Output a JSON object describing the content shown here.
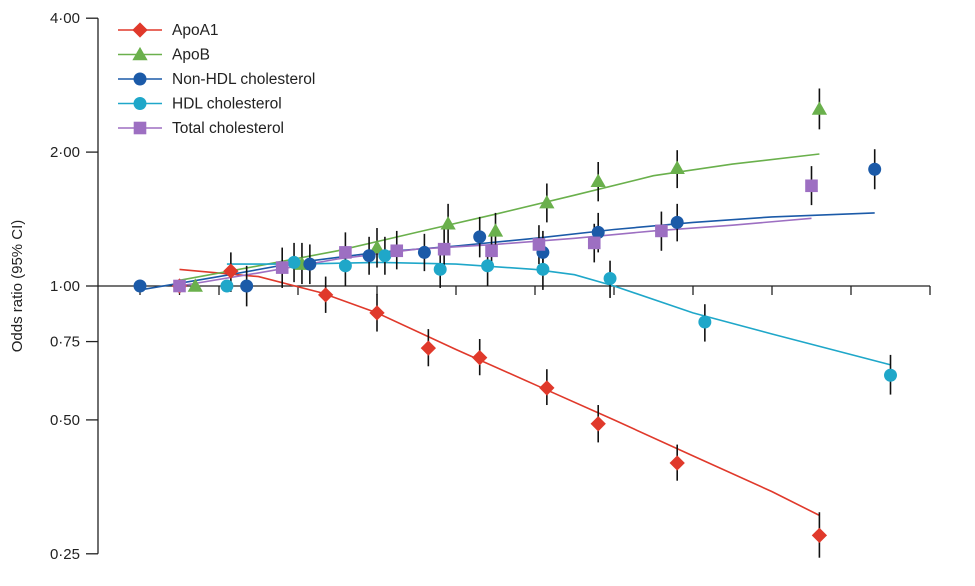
{
  "chart_data": {
    "type": "scatter",
    "title": "",
    "xlabel": "",
    "ylabel": "Odds ratio (95% CI)",
    "y_scale": "log",
    "ylim": [
      0.24,
      4.1
    ],
    "xlim": [
      0,
      100
    ],
    "y_ticks": [
      {
        "value": 4.0,
        "label": "4·00"
      },
      {
        "value": 2.0,
        "label": "2·00"
      },
      {
        "value": 1.0,
        "label": "1·00"
      },
      {
        "value": 0.75,
        "label": "0·75"
      },
      {
        "value": 0.5,
        "label": "0·50"
      },
      {
        "value": 0.25,
        "label": "0·25"
      }
    ],
    "x_ticks": [
      0,
      5,
      10,
      20,
      30,
      40,
      50,
      60,
      70,
      80,
      90,
      100
    ],
    "legend_position": "top-left",
    "series": [
      {
        "name": "ApoA1",
        "color": "#e0392b",
        "marker": "diamond",
        "points": [
          {
            "x": 5,
            "y": 1.0
          },
          {
            "x": 11.5,
            "y": 1.08,
            "lo": 0.97,
            "hi": 1.19
          },
          {
            "x": 23.5,
            "y": 0.955,
            "lo": 0.87,
            "hi": 1.05
          },
          {
            "x": 30,
            "y": 0.87,
            "lo": 0.79,
            "hi": 0.96
          },
          {
            "x": 36.5,
            "y": 0.725,
            "lo": 0.66,
            "hi": 0.8
          },
          {
            "x": 43,
            "y": 0.69,
            "lo": 0.63,
            "hi": 0.76
          },
          {
            "x": 51.5,
            "y": 0.59,
            "lo": 0.54,
            "hi": 0.65
          },
          {
            "x": 58,
            "y": 0.49,
            "lo": 0.445,
            "hi": 0.54
          },
          {
            "x": 68,
            "y": 0.4,
            "lo": 0.365,
            "hi": 0.44
          },
          {
            "x": 86,
            "y": 0.275,
            "lo": 0.245,
            "hi": 0.31
          }
        ],
        "fit": [
          {
            "x": 5,
            "y": 1.09
          },
          {
            "x": 15,
            "y": 1.05
          },
          {
            "x": 23,
            "y": 0.965
          },
          {
            "x": 30,
            "y": 0.87
          },
          {
            "x": 40,
            "y": 0.72
          },
          {
            "x": 50,
            "y": 0.6
          },
          {
            "x": 60,
            "y": 0.5
          },
          {
            "x": 70,
            "y": 0.415
          },
          {
            "x": 80,
            "y": 0.345
          },
          {
            "x": 86,
            "y": 0.305
          }
        ]
      },
      {
        "name": "ApoB",
        "color": "#6ab04c",
        "marker": "triangle",
        "points": [
          {
            "x": 7,
            "y": 1.0
          },
          {
            "x": 20.5,
            "y": 1.12,
            "lo": 1.01,
            "hi": 1.25
          },
          {
            "x": 30,
            "y": 1.22,
            "lo": 1.1,
            "hi": 1.35
          },
          {
            "x": 39,
            "y": 1.38,
            "lo": 1.24,
            "hi": 1.53
          },
          {
            "x": 45,
            "y": 1.33,
            "lo": 1.2,
            "hi": 1.46
          },
          {
            "x": 51.5,
            "y": 1.54,
            "lo": 1.39,
            "hi": 1.7
          },
          {
            "x": 58,
            "y": 1.72,
            "lo": 1.55,
            "hi": 1.9
          },
          {
            "x": 68,
            "y": 1.84,
            "lo": 1.66,
            "hi": 2.02
          },
          {
            "x": 86,
            "y": 2.5,
            "lo": 2.25,
            "hi": 2.78
          }
        ],
        "fit": [
          {
            "x": 5,
            "y": 1.03
          },
          {
            "x": 15,
            "y": 1.11
          },
          {
            "x": 25,
            "y": 1.2
          },
          {
            "x": 35,
            "y": 1.32
          },
          {
            "x": 45,
            "y": 1.45
          },
          {
            "x": 55,
            "y": 1.6
          },
          {
            "x": 65,
            "y": 1.77
          },
          {
            "x": 75,
            "y": 1.88
          },
          {
            "x": 86,
            "y": 1.98
          }
        ]
      },
      {
        "name": "Non-HDL cholesterol",
        "color": "#1b5aa8",
        "marker": "circle",
        "points": [
          {
            "x": 0,
            "y": 1.0
          },
          {
            "x": 13.5,
            "y": 1.0,
            "lo": 0.9,
            "hi": 1.11
          },
          {
            "x": 21.5,
            "y": 1.12,
            "lo": 1.01,
            "hi": 1.24
          },
          {
            "x": 29,
            "y": 1.17,
            "lo": 1.06,
            "hi": 1.29
          },
          {
            "x": 36,
            "y": 1.19,
            "lo": 1.08,
            "hi": 1.31
          },
          {
            "x": 43,
            "y": 1.29,
            "lo": 1.16,
            "hi": 1.43
          },
          {
            "x": 51,
            "y": 1.19,
            "lo": 1.07,
            "hi": 1.33
          },
          {
            "x": 58,
            "y": 1.32,
            "lo": 1.19,
            "hi": 1.46
          },
          {
            "x": 68,
            "y": 1.39,
            "lo": 1.26,
            "hi": 1.53
          },
          {
            "x": 93,
            "y": 1.83,
            "lo": 1.65,
            "hi": 2.03
          }
        ],
        "fit": [
          {
            "x": 0,
            "y": 0.98
          },
          {
            "x": 10,
            "y": 1.05
          },
          {
            "x": 20,
            "y": 1.13
          },
          {
            "x": 30,
            "y": 1.19
          },
          {
            "x": 40,
            "y": 1.23
          },
          {
            "x": 50,
            "y": 1.28
          },
          {
            "x": 60,
            "y": 1.34
          },
          {
            "x": 70,
            "y": 1.39
          },
          {
            "x": 80,
            "y": 1.43
          },
          {
            "x": 93,
            "y": 1.46
          }
        ]
      },
      {
        "name": "HDL cholesterol",
        "color": "#1fa7c9",
        "marker": "circle",
        "points": [
          {
            "x": 11,
            "y": 1.0
          },
          {
            "x": 19.5,
            "y": 1.13,
            "lo": 1.02,
            "hi": 1.25
          },
          {
            "x": 26,
            "y": 1.11,
            "lo": 1.0,
            "hi": 1.23
          },
          {
            "x": 31,
            "y": 1.17,
            "lo": 1.06,
            "hi": 1.29
          },
          {
            "x": 38,
            "y": 1.09,
            "lo": 0.99,
            "hi": 1.21
          },
          {
            "x": 44,
            "y": 1.11,
            "lo": 1.0,
            "hi": 1.23
          },
          {
            "x": 51,
            "y": 1.09,
            "lo": 0.98,
            "hi": 1.21
          },
          {
            "x": 59.5,
            "y": 1.04,
            "lo": 0.94,
            "hi": 1.14
          },
          {
            "x": 71.5,
            "y": 0.83,
            "lo": 0.75,
            "hi": 0.91
          },
          {
            "x": 95,
            "y": 0.63,
            "lo": 0.57,
            "hi": 0.7
          }
        ],
        "fit": [
          {
            "x": 11,
            "y": 1.12
          },
          {
            "x": 20,
            "y": 1.12
          },
          {
            "x": 30,
            "y": 1.13
          },
          {
            "x": 40,
            "y": 1.12
          },
          {
            "x": 50,
            "y": 1.09
          },
          {
            "x": 55,
            "y": 1.06
          },
          {
            "x": 60,
            "y": 1.0
          },
          {
            "x": 70,
            "y": 0.87
          },
          {
            "x": 80,
            "y": 0.78
          },
          {
            "x": 95,
            "y": 0.665
          }
        ]
      },
      {
        "name": "Total cholesterol",
        "color": "#9d6fc2",
        "marker": "square",
        "points": [
          {
            "x": 5,
            "y": 1.0
          },
          {
            "x": 18,
            "y": 1.1,
            "lo": 0.99,
            "hi": 1.22
          },
          {
            "x": 26,
            "y": 1.19,
            "lo": 1.08,
            "hi": 1.32
          },
          {
            "x": 32.5,
            "y": 1.2,
            "lo": 1.09,
            "hi": 1.33
          },
          {
            "x": 38.5,
            "y": 1.21,
            "lo": 1.1,
            "hi": 1.34
          },
          {
            "x": 44.5,
            "y": 1.2,
            "lo": 1.09,
            "hi": 1.32
          },
          {
            "x": 50.5,
            "y": 1.24,
            "lo": 1.12,
            "hi": 1.37
          },
          {
            "x": 57.5,
            "y": 1.25,
            "lo": 1.13,
            "hi": 1.38
          },
          {
            "x": 66,
            "y": 1.33,
            "lo": 1.2,
            "hi": 1.47
          },
          {
            "x": 85,
            "y": 1.68,
            "lo": 1.52,
            "hi": 1.86
          }
        ],
        "fit": [
          {
            "x": 5,
            "y": 1.0
          },
          {
            "x": 15,
            "y": 1.07
          },
          {
            "x": 25,
            "y": 1.15
          },
          {
            "x": 35,
            "y": 1.21
          },
          {
            "x": 45,
            "y": 1.24
          },
          {
            "x": 55,
            "y": 1.28
          },
          {
            "x": 65,
            "y": 1.33
          },
          {
            "x": 75,
            "y": 1.37
          },
          {
            "x": 85,
            "y": 1.42
          }
        ]
      }
    ]
  }
}
